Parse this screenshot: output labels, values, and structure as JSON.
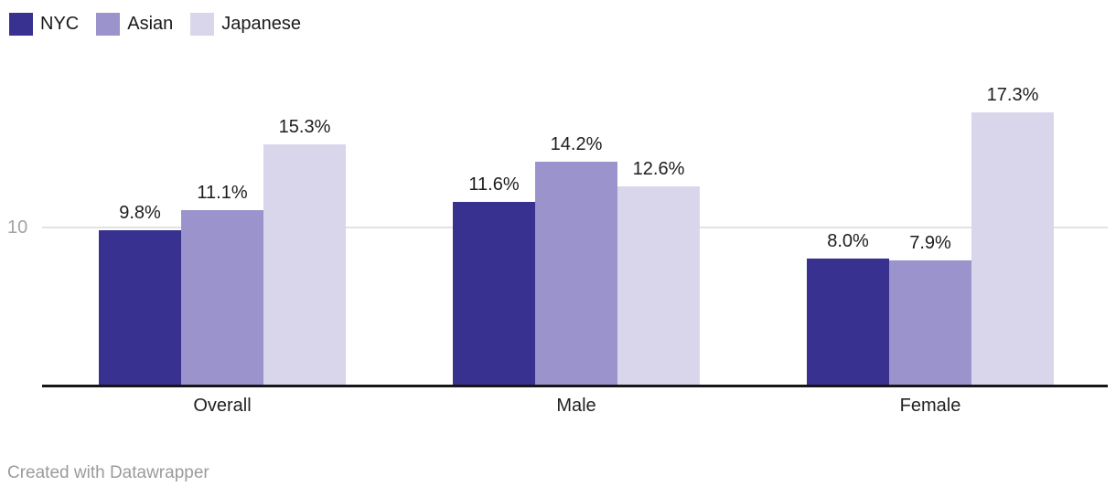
{
  "legend": {
    "items": [
      {
        "label": "NYC",
        "color": "#38318f"
      },
      {
        "label": "Asian",
        "color": "#9b94cc"
      },
      {
        "label": "Japanese",
        "color": "#d9d6ec"
      }
    ]
  },
  "axis": {
    "ytick_label": "10",
    "ytick_value": 10
  },
  "chart_data": {
    "type": "bar",
    "subtype": "grouped-column",
    "categories": [
      "Overall",
      "Male",
      "Female"
    ],
    "series": [
      {
        "name": "NYC",
        "color": "#38318f",
        "values": [
          9.8,
          11.6,
          8.0
        ],
        "value_labels": [
          "9.8%",
          "11.6%",
          "8.0%"
        ]
      },
      {
        "name": "Asian",
        "color": "#9b94cc",
        "values": [
          11.1,
          14.2,
          7.9
        ],
        "value_labels": [
          "11.1%",
          "14.2%",
          "7.9%"
        ]
      },
      {
        "name": "Japanese",
        "color": "#d9d6ec",
        "values": [
          15.3,
          12.6,
          17.3
        ],
        "value_labels": [
          "15.3%",
          "12.6%",
          "17.3%"
        ]
      }
    ],
    "title": "",
    "xlabel": "",
    "ylabel": "",
    "ylim": [
      0,
      20
    ],
    "yticks_shown": [
      10
    ],
    "grid": "single horizontal gridline at 10",
    "legend_position": "top-left",
    "value_label_format": "percent, one decimal"
  },
  "footer": {
    "credit": "Created with Datawrapper"
  }
}
